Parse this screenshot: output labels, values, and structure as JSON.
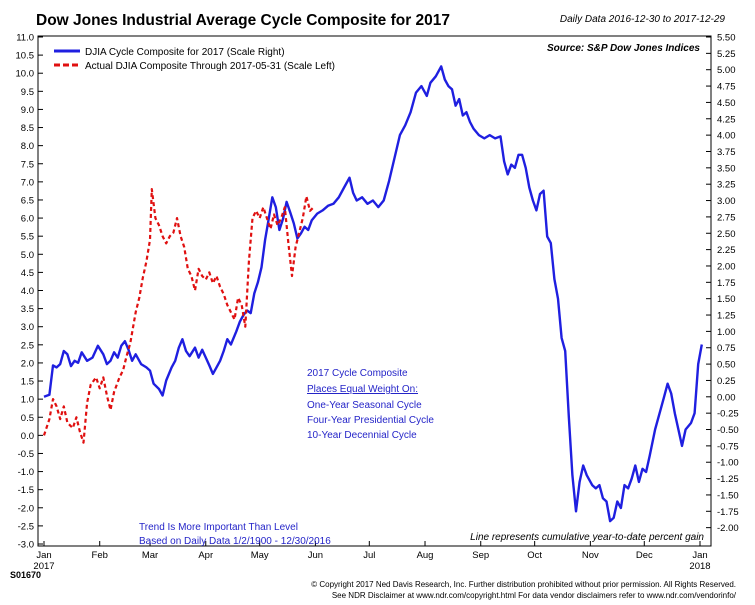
{
  "header": {
    "title": "Dow Jones Industrial Average Cycle Composite for 2017",
    "date_range": "Daily Data 2016-12-30 to 2017-12-29"
  },
  "source": "Source:   S&P Dow Jones Indices",
  "series_code": "S01670",
  "annotations": {
    "weights": [
      "2017 Cycle Composite",
      "Places Equal Weight On:",
      "One-Year Seasonal Cycle",
      "Four-Year Presidential Cycle",
      "10-Year Decennial Cycle"
    ],
    "trend": [
      "Trend Is More Important Than Level",
      "Based on Daily Data 1/2/1900 - 12/30/2016"
    ],
    "gain_note": "Line represents cumulative year-to-date percent gain"
  },
  "footer": {
    "line1": "© Copyright 2017 Ned Davis Research, Inc. Further distribution prohibited without prior permission. All Rights Reserved.",
    "line2": "See NDR Disclaimer at www.ndr.com/copyright.html   For data vendor disclaimers refer to www.ndr.com/vendorinfo/"
  },
  "chart_data": {
    "type": "line",
    "title": "Dow Jones Industrial Average Cycle Composite for 2017",
    "x_ticks": [
      "Jan",
      "Feb",
      "Mar",
      "Apr",
      "May",
      "Jun",
      "Jul",
      "Aug",
      "Sep",
      "Oct",
      "Nov",
      "Dec",
      "Jan"
    ],
    "x_tick_sublabels": {
      "0": "2017",
      "12": "2018"
    },
    "left_axis": {
      "range": [
        -3.0,
        11.0
      ],
      "ticks": [
        "-3.0",
        "-2.5",
        "-2.0",
        "-1.5",
        "-1.0",
        "-0.5",
        "0.0",
        "0.5",
        "1.0",
        "1.5",
        "2.0",
        "2.5",
        "3.0",
        "3.5",
        "4.0",
        "4.5",
        "5.0",
        "5.5",
        "6.0",
        "6.5",
        "7.0",
        "7.5",
        "8.0",
        "8.5",
        "9.0",
        "9.5",
        "10.0",
        "10.5",
        "11.0"
      ]
    },
    "right_axis": {
      "range": [
        -2.25,
        5.5
      ],
      "ticks": [
        "-2.00",
        "-1.75",
        "-1.50",
        "-1.25",
        "-1.00",
        "-0.75",
        "-0.50",
        "-0.25",
        "0.00",
        "0.25",
        "0.50",
        "0.75",
        "1.00",
        "1.25",
        "1.50",
        "1.75",
        "2.00",
        "2.25",
        "2.50",
        "2.75",
        "3.00",
        "3.25",
        "3.50",
        "3.75",
        "4.00",
        "4.25",
        "4.50",
        "4.75",
        "5.00",
        "5.25",
        "5.50"
      ]
    },
    "grid": false,
    "legend_position": "top-left",
    "colors": {
      "blue": "#1f1fe0",
      "red": "#e01010"
    },
    "series": [
      {
        "name": "DJIA Cycle Composite for 2017 (Scale Right)",
        "axis": "right",
        "color": "#1f1fe0",
        "dash": false,
        "points": [
          [
            "2017-01-01",
            0.0
          ],
          [
            "2017-01-04",
            0.03
          ],
          [
            "2017-01-06",
            0.48
          ],
          [
            "2017-01-08",
            0.45
          ],
          [
            "2017-01-10",
            0.5
          ],
          [
            "2017-01-12",
            0.7
          ],
          [
            "2017-01-14",
            0.65
          ],
          [
            "2017-01-16",
            0.47
          ],
          [
            "2017-01-18",
            0.55
          ],
          [
            "2017-01-20",
            0.52
          ],
          [
            "2017-01-22",
            0.68
          ],
          [
            "2017-01-25",
            0.55
          ],
          [
            "2017-01-28",
            0.6
          ],
          [
            "2017-01-31",
            0.78
          ],
          [
            "2017-02-03",
            0.65
          ],
          [
            "2017-02-05",
            0.5
          ],
          [
            "2017-02-07",
            0.55
          ],
          [
            "2017-02-09",
            0.68
          ],
          [
            "2017-02-11",
            0.6
          ],
          [
            "2017-02-13",
            0.78
          ],
          [
            "2017-02-15",
            0.85
          ],
          [
            "2017-02-17",
            0.72
          ],
          [
            "2017-02-19",
            0.55
          ],
          [
            "2017-02-21",
            0.65
          ],
          [
            "2017-02-24",
            0.5
          ],
          [
            "2017-02-27",
            0.45
          ],
          [
            "2017-03-01",
            0.4
          ],
          [
            "2017-03-03",
            0.2
          ],
          [
            "2017-03-06",
            0.12
          ],
          [
            "2017-03-08",
            0.02
          ],
          [
            "2017-03-10",
            0.25
          ],
          [
            "2017-03-13",
            0.45
          ],
          [
            "2017-03-15",
            0.55
          ],
          [
            "2017-03-17",
            0.75
          ],
          [
            "2017-03-19",
            0.88
          ],
          [
            "2017-03-21",
            0.7
          ],
          [
            "2017-03-23",
            0.62
          ],
          [
            "2017-03-26",
            0.75
          ],
          [
            "2017-03-28",
            0.6
          ],
          [
            "2017-03-30",
            0.72
          ],
          [
            "2017-04-01",
            0.6
          ],
          [
            "2017-04-03",
            0.48
          ],
          [
            "2017-04-05",
            0.35
          ],
          [
            "2017-04-07",
            0.45
          ],
          [
            "2017-04-09",
            0.55
          ],
          [
            "2017-04-11",
            0.7
          ],
          [
            "2017-04-13",
            0.88
          ],
          [
            "2017-04-15",
            0.8
          ],
          [
            "2017-04-18",
            1.0
          ],
          [
            "2017-04-20",
            1.15
          ],
          [
            "2017-04-22",
            1.25
          ],
          [
            "2017-04-24",
            1.32
          ],
          [
            "2017-04-26",
            1.28
          ],
          [
            "2017-04-28",
            1.58
          ],
          [
            "2017-04-30",
            1.75
          ],
          [
            "2017-05-02",
            1.98
          ],
          [
            "2017-05-04",
            2.4
          ],
          [
            "2017-05-06",
            2.72
          ],
          [
            "2017-05-08",
            3.05
          ],
          [
            "2017-05-10",
            2.9
          ],
          [
            "2017-05-12",
            2.55
          ],
          [
            "2017-05-14",
            2.72
          ],
          [
            "2017-05-16",
            2.98
          ],
          [
            "2017-05-18",
            2.82
          ],
          [
            "2017-05-20",
            2.65
          ],
          [
            "2017-05-22",
            2.42
          ],
          [
            "2017-05-24",
            2.5
          ],
          [
            "2017-05-26",
            2.6
          ],
          [
            "2017-05-28",
            2.55
          ],
          [
            "2017-05-30",
            2.7
          ],
          [
            "2017-06-02",
            2.8
          ],
          [
            "2017-06-05",
            2.85
          ],
          [
            "2017-06-08",
            2.92
          ],
          [
            "2017-06-11",
            2.95
          ],
          [
            "2017-06-14",
            3.05
          ],
          [
            "2017-06-17",
            3.2
          ],
          [
            "2017-06-20",
            3.35
          ],
          [
            "2017-06-22",
            3.12
          ],
          [
            "2017-06-24",
            3.0
          ],
          [
            "2017-06-27",
            3.05
          ],
          [
            "2017-06-30",
            2.95
          ],
          [
            "2017-07-03",
            3.0
          ],
          [
            "2017-07-06",
            2.9
          ],
          [
            "2017-07-09",
            3.0
          ],
          [
            "2017-07-12",
            3.3
          ],
          [
            "2017-07-15",
            3.65
          ],
          [
            "2017-07-18",
            4.0
          ],
          [
            "2017-07-21",
            4.15
          ],
          [
            "2017-07-24",
            4.35
          ],
          [
            "2017-07-27",
            4.65
          ],
          [
            "2017-07-30",
            4.75
          ],
          [
            "2017-08-02",
            4.6
          ],
          [
            "2017-08-04",
            4.8
          ],
          [
            "2017-08-07",
            4.9
          ],
          [
            "2017-08-10",
            5.05
          ],
          [
            "2017-08-12",
            4.85
          ],
          [
            "2017-08-14",
            4.75
          ],
          [
            "2017-08-16",
            4.7
          ],
          [
            "2017-08-18",
            4.45
          ],
          [
            "2017-08-20",
            4.55
          ],
          [
            "2017-08-22",
            4.3
          ],
          [
            "2017-08-24",
            4.35
          ],
          [
            "2017-08-26",
            4.2
          ],
          [
            "2017-08-28",
            4.1
          ],
          [
            "2017-08-31",
            4.0
          ],
          [
            "2017-09-03",
            3.95
          ],
          [
            "2017-09-06",
            4.0
          ],
          [
            "2017-09-09",
            3.95
          ],
          [
            "2017-09-12",
            3.98
          ],
          [
            "2017-09-14",
            3.6
          ],
          [
            "2017-09-16",
            3.4
          ],
          [
            "2017-09-18",
            3.55
          ],
          [
            "2017-09-20",
            3.5
          ],
          [
            "2017-09-22",
            3.7
          ],
          [
            "2017-09-24",
            3.7
          ],
          [
            "2017-09-26",
            3.5
          ],
          [
            "2017-09-28",
            3.2
          ],
          [
            "2017-09-30",
            3.0
          ],
          [
            "2017-10-02",
            2.85
          ],
          [
            "2017-10-04",
            3.1
          ],
          [
            "2017-10-06",
            3.15
          ],
          [
            "2017-10-08",
            2.45
          ],
          [
            "2017-10-10",
            2.35
          ],
          [
            "2017-10-12",
            1.8
          ],
          [
            "2017-10-14",
            1.5
          ],
          [
            "2017-10-16",
            0.9
          ],
          [
            "2017-10-18",
            0.7
          ],
          [
            "2017-10-20",
            -0.3
          ],
          [
            "2017-10-22",
            -1.2
          ],
          [
            "2017-10-24",
            -1.75
          ],
          [
            "2017-10-26",
            -1.3
          ],
          [
            "2017-10-28",
            -1.05
          ],
          [
            "2017-10-30",
            -1.2
          ],
          [
            "2017-11-02",
            -1.35
          ],
          [
            "2017-11-04",
            -1.4
          ],
          [
            "2017-11-06",
            -1.35
          ],
          [
            "2017-11-08",
            -1.55
          ],
          [
            "2017-11-10",
            -1.6
          ],
          [
            "2017-11-12",
            -1.9
          ],
          [
            "2017-11-14",
            -1.85
          ],
          [
            "2017-11-16",
            -1.6
          ],
          [
            "2017-11-18",
            -1.7
          ],
          [
            "2017-11-20",
            -1.35
          ],
          [
            "2017-11-22",
            -1.4
          ],
          [
            "2017-11-24",
            -1.25
          ],
          [
            "2017-11-26",
            -1.05
          ],
          [
            "2017-11-28",
            -1.3
          ],
          [
            "2017-11-30",
            -1.1
          ],
          [
            "2017-12-02",
            -1.15
          ],
          [
            "2017-12-04",
            -0.9
          ],
          [
            "2017-12-07",
            -0.5
          ],
          [
            "2017-12-10",
            -0.2
          ],
          [
            "2017-12-12",
            0.0
          ],
          [
            "2017-12-14",
            0.2
          ],
          [
            "2017-12-16",
            0.05
          ],
          [
            "2017-12-18",
            -0.25
          ],
          [
            "2017-12-20",
            -0.5
          ],
          [
            "2017-12-22",
            -0.75
          ],
          [
            "2017-12-24",
            -0.5
          ],
          [
            "2017-12-27",
            -0.4
          ],
          [
            "2017-12-29",
            -0.25
          ],
          [
            "2017-12-31",
            0.5
          ],
          [
            "2018-01-02",
            0.8
          ]
        ]
      },
      {
        "name": "Actual DJIA Composite Through 2017-05-31 (Scale Left)",
        "axis": "left",
        "color": "#e01010",
        "dash": true,
        "points": [
          [
            "2017-01-01",
            0.0
          ],
          [
            "2017-01-04",
            0.45
          ],
          [
            "2017-01-06",
            1.0
          ],
          [
            "2017-01-08",
            0.8
          ],
          [
            "2017-01-10",
            0.45
          ],
          [
            "2017-01-12",
            0.8
          ],
          [
            "2017-01-14",
            0.35
          ],
          [
            "2017-01-17",
            0.2
          ],
          [
            "2017-01-19",
            0.5
          ],
          [
            "2017-01-21",
            0.1
          ],
          [
            "2017-01-23",
            -0.2
          ],
          [
            "2017-01-25",
            0.9
          ],
          [
            "2017-01-27",
            1.4
          ],
          [
            "2017-01-30",
            1.6
          ],
          [
            "2017-02-01",
            1.3
          ],
          [
            "2017-02-03",
            1.6
          ],
          [
            "2017-02-05",
            1.1
          ],
          [
            "2017-02-07",
            0.7
          ],
          [
            "2017-02-09",
            1.2
          ],
          [
            "2017-02-12",
            1.6
          ],
          [
            "2017-02-14",
            1.8
          ],
          [
            "2017-02-16",
            2.2
          ],
          [
            "2017-02-18",
            2.55
          ],
          [
            "2017-02-21",
            3.4
          ],
          [
            "2017-02-23",
            3.8
          ],
          [
            "2017-02-25",
            4.35
          ],
          [
            "2017-02-27",
            4.8
          ],
          [
            "2017-03-01",
            5.4
          ],
          [
            "2017-03-02",
            6.8
          ],
          [
            "2017-03-04",
            6.0
          ],
          [
            "2017-03-06",
            5.8
          ],
          [
            "2017-03-08",
            5.5
          ],
          [
            "2017-03-10",
            5.3
          ],
          [
            "2017-03-12",
            5.5
          ],
          [
            "2017-03-14",
            5.6
          ],
          [
            "2017-03-16",
            6.0
          ],
          [
            "2017-03-18",
            5.5
          ],
          [
            "2017-03-20",
            5.2
          ],
          [
            "2017-03-22",
            4.6
          ],
          [
            "2017-03-24",
            4.4
          ],
          [
            "2017-03-26",
            4.0
          ],
          [
            "2017-03-28",
            4.6
          ],
          [
            "2017-03-30",
            4.4
          ],
          [
            "2017-04-01",
            4.3
          ],
          [
            "2017-04-03",
            4.5
          ],
          [
            "2017-04-05",
            4.2
          ],
          [
            "2017-04-07",
            4.4
          ],
          [
            "2017-04-09",
            4.1
          ],
          [
            "2017-04-11",
            3.9
          ],
          [
            "2017-04-13",
            3.6
          ],
          [
            "2017-04-15",
            3.4
          ],
          [
            "2017-04-17",
            3.2
          ],
          [
            "2017-04-19",
            3.8
          ],
          [
            "2017-04-21",
            3.6
          ],
          [
            "2017-04-23",
            3.0
          ],
          [
            "2017-04-25",
            4.8
          ],
          [
            "2017-04-27",
            6.0
          ],
          [
            "2017-04-29",
            6.2
          ],
          [
            "2017-05-01",
            6.0
          ],
          [
            "2017-05-03",
            6.3
          ],
          [
            "2017-05-05",
            6.0
          ],
          [
            "2017-05-07",
            5.7
          ],
          [
            "2017-05-09",
            6.1
          ],
          [
            "2017-05-11",
            5.8
          ],
          [
            "2017-05-13",
            6.0
          ],
          [
            "2017-05-15",
            6.3
          ],
          [
            "2017-05-17",
            5.3
          ],
          [
            "2017-05-19",
            4.4
          ],
          [
            "2017-05-21",
            5.2
          ],
          [
            "2017-05-23",
            5.6
          ],
          [
            "2017-05-25",
            6.0
          ],
          [
            "2017-05-27",
            6.6
          ],
          [
            "2017-05-29",
            6.2
          ],
          [
            "2017-05-31",
            6.3
          ]
        ]
      }
    ]
  }
}
